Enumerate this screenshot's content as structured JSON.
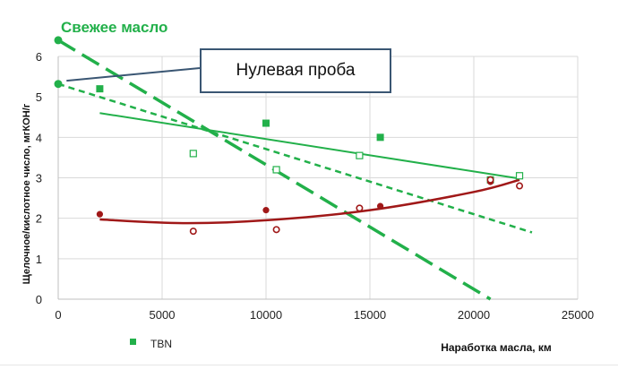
{
  "fresh_oil_label": "Свежее масло",
  "callout_label": "Нулевая проба",
  "colors": {
    "green": "#22b04a",
    "dark_red": "#a01818",
    "callout_border": "#3a5673",
    "grid": "#d9d9d9",
    "axis_text": "#222222"
  },
  "chart_data": {
    "type": "scatter",
    "title": "",
    "xlabel": "Наработка масла, км",
    "ylabel": "Щелочное/кислотное число, мгКОН/г",
    "xlim": [
      0,
      25000
    ],
    "ylim": [
      0,
      6
    ],
    "x_ticks": [
      "0",
      "5000",
      "10000",
      "15000",
      "20000",
      "25000"
    ],
    "y_ticks": [
      "0",
      "1",
      "2",
      "3",
      "4",
      "5",
      "6"
    ],
    "grid": true,
    "legend": {
      "placement": "bottom-left",
      "entries": [
        "TBN"
      ]
    },
    "series": [
      {
        "name": "TBN",
        "marker": "filled-square",
        "color": "#22b04a",
        "x": [
          2000,
          10000,
          15500,
          20800
        ],
        "y": [
          5.2,
          4.35,
          4.0,
          2.95
        ]
      },
      {
        "marker": "open-square",
        "color": "#22b04a",
        "x": [
          6500,
          10500,
          14500,
          22200
        ],
        "y": [
          3.6,
          3.2,
          3.55,
          3.05
        ]
      },
      {
        "marker": "filled-circle",
        "color": "#a01818",
        "x": [
          2000,
          10000,
          14500,
          15500,
          20800
        ],
        "y": [
          2.1,
          2.2,
          2.25,
          2.3,
          2.9
        ]
      },
      {
        "marker": "open-circle",
        "color": "#a01818",
        "x": [
          6500,
          10500,
          14500,
          20800,
          22200
        ],
        "y": [
          1.68,
          1.72,
          2.25,
          2.95,
          2.8
        ]
      }
    ],
    "fresh_oil_points": {
      "x": [
        0,
        0
      ],
      "y": [
        6.4,
        5.32
      ],
      "color": "#22b04a"
    },
    "trend_lines": [
      {
        "style": "long-dash",
        "color": "#22b04a",
        "x": [
          0,
          20800
        ],
        "y": [
          6.4,
          0
        ]
      },
      {
        "style": "short-dash",
        "color": "#22b04a",
        "x": [
          0,
          22800
        ],
        "y": [
          5.32,
          1.65
        ]
      },
      {
        "style": "solid",
        "color": "#22b04a",
        "x": [
          2000,
          22200
        ],
        "y": [
          4.6,
          2.98
        ]
      },
      {
        "style": "solid-curve",
        "color": "#a01818",
        "x": [
          2000,
          6000,
          10000,
          15000,
          20000,
          22200
        ],
        "y": [
          1.97,
          1.88,
          1.95,
          2.2,
          2.65,
          2.95
        ]
      }
    ]
  }
}
